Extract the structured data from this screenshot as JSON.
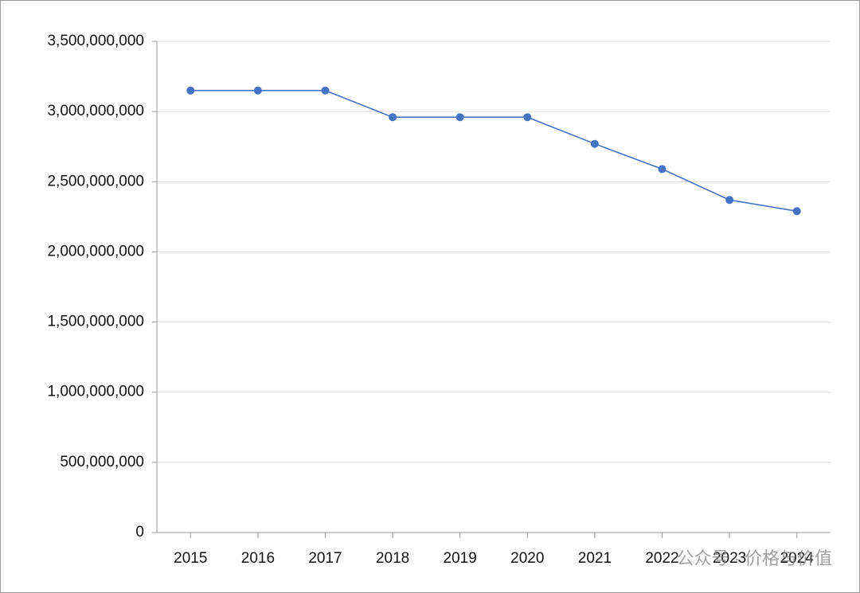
{
  "chart_data": {
    "type": "line",
    "categories": [
      "2015",
      "2016",
      "2017",
      "2018",
      "2019",
      "2020",
      "2021",
      "2022",
      "2023",
      "2024"
    ],
    "series": [
      {
        "color": "#4472c4",
        "values": [
          3150000000,
          3150000000,
          3150000000,
          2960000000,
          2960000000,
          2960000000,
          2770000000,
          2590000000,
          2370000000,
          2290000000
        ]
      }
    ],
    "ylim": [
      0,
      3500000000
    ],
    "yticks": [
      0,
      {
        "value": 500000000,
        "label": "500,000,000"
      },
      {
        "value": 1000000000,
        "label": "1,000,000,000"
      },
      {
        "value": 1500000000,
        "label": "1,500,000,000"
      },
      {
        "value": 2000000000,
        "label": "2,000,000,000"
      },
      {
        "value": 2500000000,
        "label": "2,500,000,000"
      },
      {
        "value": 3000000000,
        "label": "3,000,000,000"
      },
      {
        "value": 3500000000,
        "label": "3,500,000,000"
      }
    ],
    "grid": true,
    "watermark": "公众号 · 价格与价值"
  }
}
